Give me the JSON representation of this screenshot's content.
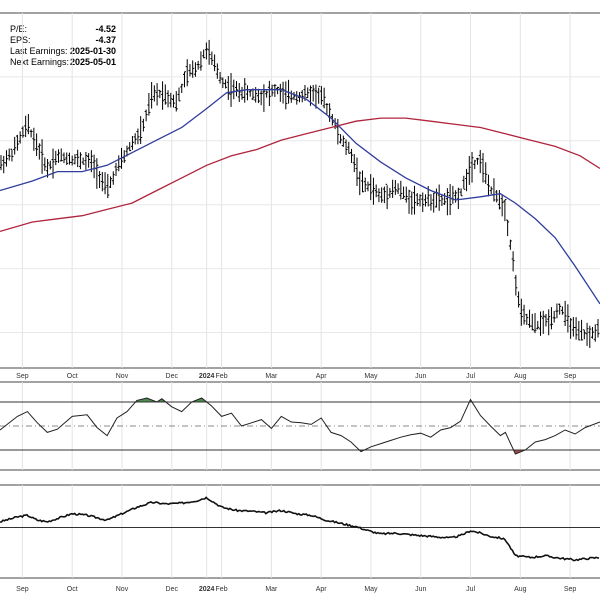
{
  "stats": {
    "pe_label": "P/E:",
    "pe_value": "-4.52",
    "eps_label": "EPS:",
    "eps_value": "-4.37",
    "last_earnings_label": "Last Earnings:",
    "last_earnings_value": "2025-01-30",
    "next_earnings_label": "Next Earnings:",
    "next_earnings_value": "2025-05-01"
  },
  "chart_data": [
    {
      "type": "line",
      "subtype": "ohlc-bars",
      "x_tick_labels": [
        "Sep",
        "Oct",
        "Nov",
        "Dec",
        "2024",
        "Feb",
        "Mar",
        "Apr",
        "May",
        "Jun",
        "Jul",
        "Aug",
        "Sep"
      ],
      "x_tick_positions": [
        0.3,
        1.3,
        2.3,
        3.3,
        4.0,
        4.3,
        5.3,
        6.3,
        7.3,
        8.3,
        9.3,
        10.3,
        11.3
      ],
      "x_range": [
        -0.15,
        11.9
      ],
      "y_range": [
        0,
        100
      ],
      "price_path": [
        [
          -0.15,
          58
        ],
        [
          0.1,
          62
        ],
        [
          0.4,
          71
        ],
        [
          0.6,
          64
        ],
        [
          0.8,
          57
        ],
        [
          1.0,
          61
        ],
        [
          1.3,
          60
        ],
        [
          1.7,
          59
        ],
        [
          2.0,
          50
        ],
        [
          2.2,
          57
        ],
        [
          2.5,
          65
        ],
        [
          2.7,
          69
        ],
        [
          2.9,
          80
        ],
        [
          3.1,
          81
        ],
        [
          3.4,
          78
        ],
        [
          3.6,
          87
        ],
        [
          3.8,
          89
        ],
        [
          4.0,
          95
        ],
        [
          4.3,
          85
        ],
        [
          4.5,
          82
        ],
        [
          4.8,
          81
        ],
        [
          5.1,
          80
        ],
        [
          5.4,
          82
        ],
        [
          5.6,
          80
        ],
        [
          5.9,
          80
        ],
        [
          6.1,
          81
        ],
        [
          6.3,
          80
        ],
        [
          6.5,
          74
        ],
        [
          6.7,
          66
        ],
        [
          6.9,
          62
        ],
        [
          7.1,
          52
        ],
        [
          7.3,
          51
        ],
        [
          7.5,
          48
        ],
        [
          7.8,
          51
        ],
        [
          8.1,
          47
        ],
        [
          8.5,
          47
        ],
        [
          8.9,
          47
        ],
        [
          9.1,
          49
        ],
        [
          9.3,
          58
        ],
        [
          9.5,
          60
        ],
        [
          9.7,
          50
        ],
        [
          9.9,
          47
        ],
        [
          10.0,
          44
        ],
        [
          10.3,
          11
        ],
        [
          10.6,
          7
        ],
        [
          10.9,
          9
        ],
        [
          11.1,
          13
        ],
        [
          11.4,
          5
        ],
        [
          11.7,
          4
        ],
        [
          11.9,
          6
        ]
      ],
      "ma_blue": [
        [
          -0.15,
          50
        ],
        [
          0.5,
          53
        ],
        [
          1.0,
          56
        ],
        [
          1.5,
          56
        ],
        [
          2.0,
          58
        ],
        [
          2.5,
          62
        ],
        [
          3.0,
          66
        ],
        [
          3.5,
          70
        ],
        [
          4.0,
          76
        ],
        [
          4.4,
          81
        ],
        [
          4.8,
          82
        ],
        [
          5.5,
          82
        ],
        [
          6.0,
          79
        ],
        [
          6.5,
          73
        ],
        [
          7.0,
          65
        ],
        [
          7.5,
          59
        ],
        [
          8.0,
          54
        ],
        [
          8.5,
          50
        ],
        [
          9.0,
          47
        ],
        [
          9.5,
          48
        ],
        [
          9.9,
          49
        ],
        [
          10.2,
          46
        ],
        [
          10.6,
          41
        ],
        [
          11.0,
          35
        ],
        [
          11.4,
          26
        ],
        [
          11.9,
          14
        ]
      ],
      "ma_red": [
        [
          -0.15,
          37
        ],
        [
          0.5,
          40
        ],
        [
          1.0,
          41
        ],
        [
          1.5,
          42
        ],
        [
          2.0,
          44
        ],
        [
          2.5,
          46
        ],
        [
          3.0,
          50
        ],
        [
          3.5,
          54
        ],
        [
          4.0,
          58
        ],
        [
          4.5,
          61
        ],
        [
          5.0,
          63
        ],
        [
          5.5,
          66
        ],
        [
          6.0,
          68
        ],
        [
          6.5,
          70
        ],
        [
          7.0,
          72
        ],
        [
          7.5,
          73
        ],
        [
          8.0,
          73
        ],
        [
          8.5,
          72
        ],
        [
          9.0,
          71
        ],
        [
          9.5,
          70
        ],
        [
          10.0,
          68
        ],
        [
          10.5,
          66
        ],
        [
          11.0,
          64
        ],
        [
          11.5,
          61
        ],
        [
          11.9,
          57
        ]
      ]
    },
    {
      "type": "area",
      "subtype": "oscillator",
      "x_range": [
        -0.15,
        11.9
      ],
      "y_range": [
        0,
        100
      ],
      "reference_lines": [
        20,
        50,
        80
      ],
      "values": [
        [
          -0.15,
          45
        ],
        [
          0.2,
          62
        ],
        [
          0.4,
          68
        ],
        [
          0.6,
          54
        ],
        [
          0.8,
          42
        ],
        [
          1.0,
          46
        ],
        [
          1.3,
          62
        ],
        [
          1.6,
          64
        ],
        [
          1.8,
          48
        ],
        [
          2.0,
          38
        ],
        [
          2.2,
          60
        ],
        [
          2.4,
          68
        ],
        [
          2.6,
          82
        ],
        [
          2.8,
          85
        ],
        [
          3.0,
          80
        ],
        [
          3.1,
          84
        ],
        [
          3.3,
          74
        ],
        [
          3.5,
          68
        ],
        [
          3.7,
          80
        ],
        [
          3.9,
          85
        ],
        [
          4.1,
          75
        ],
        [
          4.3,
          62
        ],
        [
          4.5,
          66
        ],
        [
          4.7,
          50
        ],
        [
          4.9,
          54
        ],
        [
          5.1,
          58
        ],
        [
          5.3,
          47
        ],
        [
          5.5,
          62
        ],
        [
          5.7,
          55
        ],
        [
          5.9,
          54
        ],
        [
          6.1,
          52
        ],
        [
          6.3,
          60
        ],
        [
          6.5,
          42
        ],
        [
          6.7,
          38
        ],
        [
          6.9,
          30
        ],
        [
          7.1,
          18
        ],
        [
          7.3,
          24
        ],
        [
          7.5,
          28
        ],
        [
          7.7,
          32
        ],
        [
          7.9,
          36
        ],
        [
          8.1,
          39
        ],
        [
          8.3,
          41
        ],
        [
          8.5,
          36
        ],
        [
          8.7,
          45
        ],
        [
          8.9,
          48
        ],
        [
          9.1,
          56
        ],
        [
          9.3,
          83
        ],
        [
          9.5,
          63
        ],
        [
          9.7,
          50
        ],
        [
          9.9,
          38
        ],
        [
          10.0,
          42
        ],
        [
          10.2,
          15
        ],
        [
          10.4,
          20
        ],
        [
          10.6,
          30
        ],
        [
          10.8,
          33
        ],
        [
          11.0,
          38
        ],
        [
          11.2,
          45
        ],
        [
          11.4,
          40
        ],
        [
          11.6,
          48
        ],
        [
          11.9,
          55
        ]
      ]
    },
    {
      "type": "line",
      "subtype": "relative-strength",
      "x_tick_labels": [
        "Sep",
        "Oct",
        "Nov",
        "Dec",
        "2024",
        "Feb",
        "Mar",
        "Apr",
        "May",
        "Jun",
        "Jul",
        "Aug",
        "Sep"
      ],
      "x_tick_positions": [
        0.3,
        1.3,
        2.3,
        3.3,
        4.0,
        4.3,
        5.3,
        6.3,
        7.3,
        8.3,
        9.3,
        10.3,
        11.3
      ],
      "x_range": [
        -0.15,
        11.9
      ],
      "y_range": [
        0,
        100
      ],
      "reference_lines": [
        55
      ],
      "values": [
        [
          -0.15,
          62
        ],
        [
          0.2,
          68
        ],
        [
          0.4,
          70
        ],
        [
          0.6,
          64
        ],
        [
          0.8,
          62
        ],
        [
          1.0,
          66
        ],
        [
          1.3,
          72
        ],
        [
          1.6,
          70
        ],
        [
          2.0,
          64
        ],
        [
          2.3,
          72
        ],
        [
          2.6,
          80
        ],
        [
          2.9,
          86
        ],
        [
          3.2,
          84
        ],
        [
          3.5,
          85
        ],
        [
          3.8,
          88
        ],
        [
          4.0,
          92
        ],
        [
          4.3,
          80
        ],
        [
          4.6,
          76
        ],
        [
          4.9,
          75
        ],
        [
          5.2,
          73
        ],
        [
          5.5,
          76
        ],
        [
          5.8,
          72
        ],
        [
          6.1,
          70
        ],
        [
          6.4,
          64
        ],
        [
          6.7,
          60
        ],
        [
          7.0,
          56
        ],
        [
          7.3,
          50
        ],
        [
          7.5,
          47
        ],
        [
          7.8,
          48
        ],
        [
          8.1,
          46
        ],
        [
          8.5,
          44
        ],
        [
          8.9,
          42
        ],
        [
          9.1,
          45
        ],
        [
          9.3,
          51
        ],
        [
          9.5,
          48
        ],
        [
          9.7,
          44
        ],
        [
          9.9,
          42
        ],
        [
          10.0,
          40
        ],
        [
          10.2,
          20
        ],
        [
          10.5,
          18
        ],
        [
          10.8,
          20
        ],
        [
          11.1,
          17
        ],
        [
          11.4,
          15
        ],
        [
          11.7,
          17
        ],
        [
          11.9,
          18
        ]
      ]
    }
  ]
}
